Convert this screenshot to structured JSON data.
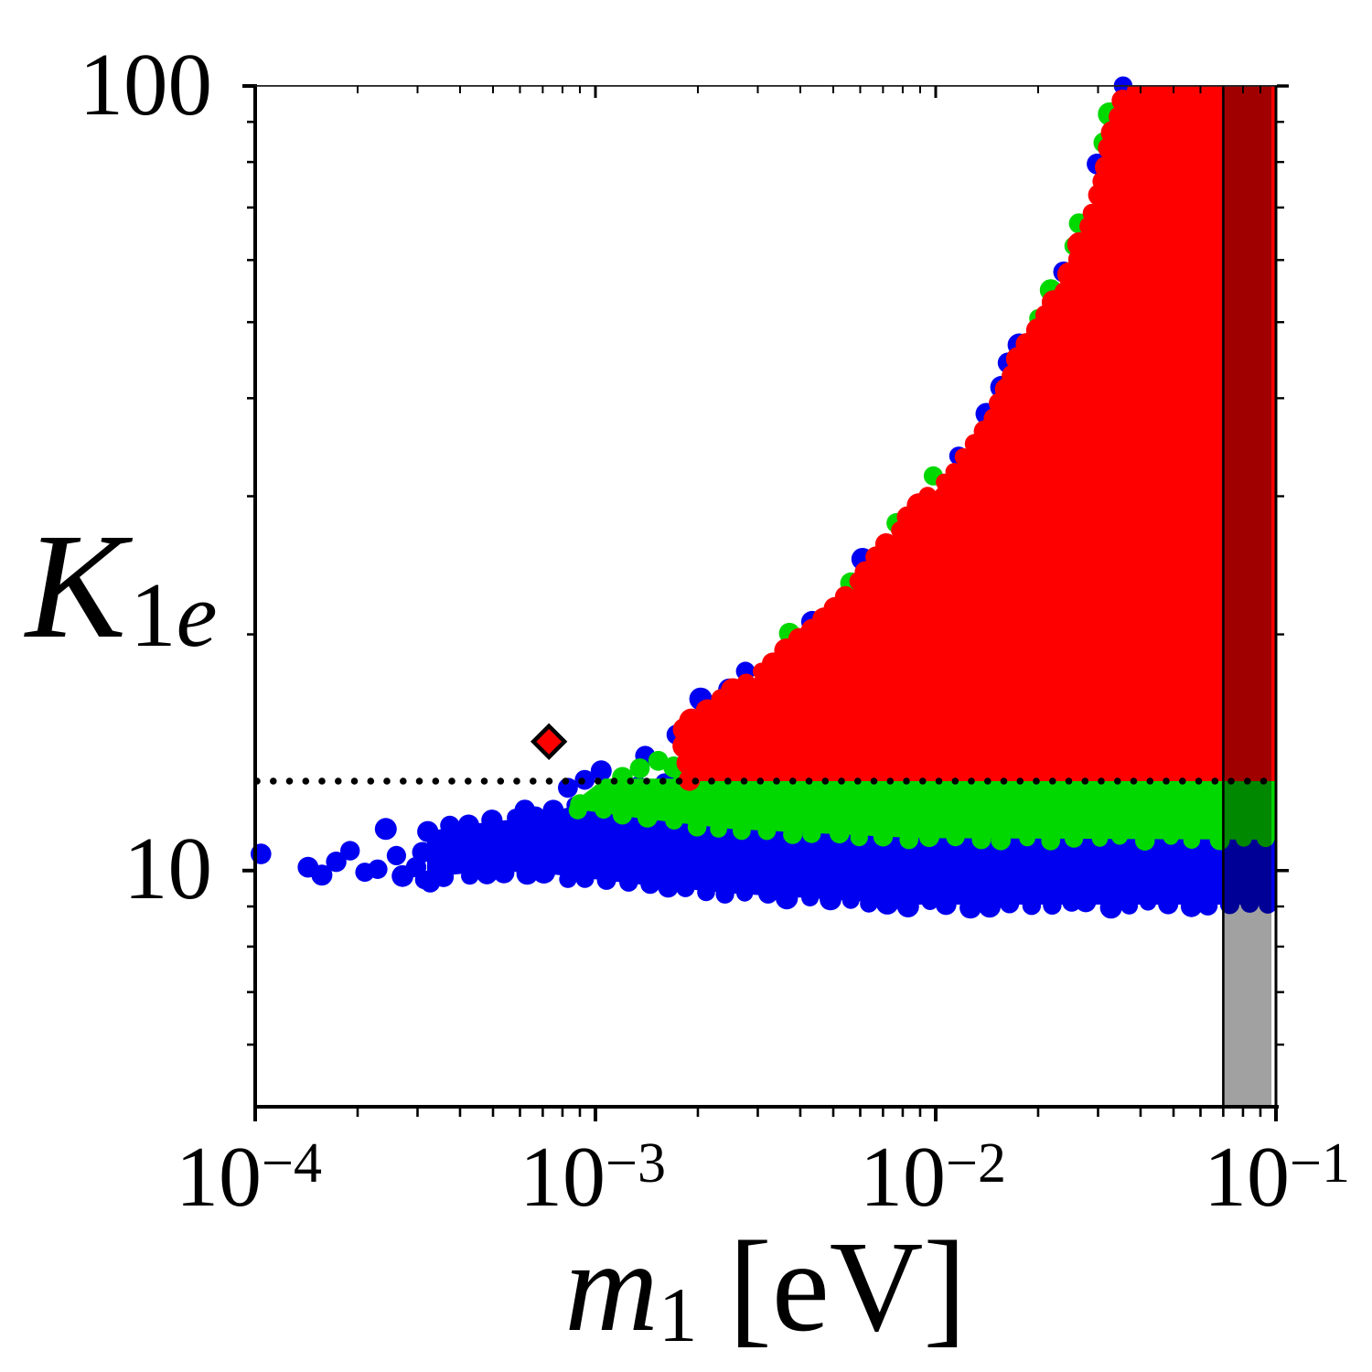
{
  "labels": {
    "y_major_100": "100",
    "y_major_10": "10",
    "ylabel": {
      "main": "K",
      "sub_num": "1",
      "sub_e": "e"
    },
    "xlabel": {
      "main": "m",
      "sub": "1",
      "unit": "[eV]"
    },
    "xticks": [
      {
        "base": "10",
        "exp": "−4"
      },
      {
        "base": "10",
        "exp": "−3"
      },
      {
        "base": "10",
        "exp": "−2"
      },
      {
        "base": "10",
        "exp": "−1"
      }
    ]
  },
  "chart_data": {
    "type": "scatter",
    "title": "",
    "xlabel": "m_1 [eV]",
    "ylabel": "K_1e",
    "xscale": "log",
    "yscale": "log",
    "xlim": [
      0.0001,
      0.1
    ],
    "ylim": [
      5,
      100
    ],
    "grid": false,
    "legend": "none",
    "x_major_ticks": [
      0.0001,
      0.001,
      0.01,
      0.1
    ],
    "x_minor_mantissas": [
      2,
      3,
      4,
      5,
      6,
      7,
      8,
      9
    ],
    "y_major_ticks": [
      10,
      100
    ],
    "y_minor_ticks": [
      6,
      7,
      8,
      9,
      20,
      30,
      40,
      50,
      60,
      70,
      80,
      90
    ],
    "dotted_line_y": 13.0,
    "benchmark_point": {
      "marker": "diamond",
      "x": 0.00073,
      "y": 14.6,
      "fill": "#ff0000",
      "edge": "#000000"
    },
    "excluded_band": {
      "x_min": 0.07,
      "x_max": 0.097,
      "overlay": "rgba(0,0,0,0.37)",
      "edge_color": "#000000"
    },
    "colors": {
      "blue": "#0000f0",
      "green": "#00d800",
      "red": "#ff0000",
      "axis": "#000000",
      "dotted": "#000000"
    },
    "series": [
      {
        "name": "blue-region",
        "color": "#0000f0",
        "upper": [
          [
            0.00032,
            11.2
          ],
          [
            0.00039,
            11.4
          ],
          [
            0.00055,
            11.6
          ],
          [
            0.00073,
            11.85
          ],
          [
            0.00099,
            12.3
          ],
          [
            0.00135,
            12.9
          ],
          [
            0.1,
            12.9
          ]
        ],
        "lower": [
          [
            0.00032,
            9.8
          ],
          [
            0.0005,
            10.0
          ],
          [
            0.00073,
            9.9
          ],
          [
            0.00135,
            9.6
          ],
          [
            0.0025,
            9.35
          ],
          [
            0.0087,
            9.05
          ],
          [
            0.1,
            9.05
          ]
        ],
        "sparse_points": [
          [
            0.000104,
            10.5
          ],
          [
            0.000143,
            10.1
          ],
          [
            0.000157,
            9.87
          ],
          [
            0.000173,
            10.26
          ],
          [
            0.00019,
            10.6
          ],
          [
            0.00021,
            9.95
          ],
          [
            0.000229,
            10.04
          ],
          [
            0.000242,
            11.3
          ],
          [
            0.00026,
            10.45
          ],
          [
            0.000271,
            9.84
          ],
          [
            0.000297,
            10.1
          ],
          [
            0.00031,
            10.55
          ],
          [
            0.000327,
            9.65
          ],
          [
            0.000345,
            10.0
          ],
          [
            0.000364,
            10.3
          ],
          [
            0.00038,
            10.9
          ],
          [
            0.00041,
            10.7
          ],
          [
            0.00045,
            10.2
          ],
          [
            0.00048,
            9.9
          ],
          [
            0.0005,
            11.0
          ],
          [
            0.00053,
            10.6
          ],
          [
            0.00058,
            10.3
          ],
          [
            0.0006,
            10.8
          ],
          [
            0.00063,
            9.9
          ],
          [
            0.00068,
            10.5
          ],
          [
            0.00073,
            10.15
          ]
        ],
        "outlier_points": [
          [
            0.00104,
            13.4
          ],
          [
            0.0014,
            14.0
          ],
          [
            0.00173,
            14.9
          ],
          [
            0.00093,
            13.05
          ],
          [
            0.00083,
            12.75
          ],
          [
            0.00062,
            11.95
          ]
        ]
      },
      {
        "name": "green-region",
        "color": "#00d800",
        "upper": [
          [
            0.00088,
            12.3
          ],
          [
            0.00106,
            13.1
          ],
          [
            0.1,
            13.1
          ]
        ],
        "lower": [
          [
            0.00088,
            11.97
          ],
          [
            0.00135,
            11.66
          ],
          [
            0.0025,
            11.3
          ],
          [
            0.0087,
            11.0
          ],
          [
            0.1,
            10.95
          ]
        ],
        "outlier_points": [
          [
            0.00135,
            13.5
          ],
          [
            0.00153,
            13.8
          ],
          [
            0.0017,
            13.55
          ],
          [
            0.0012,
            13.15
          ]
        ]
      },
      {
        "name": "red-region",
        "color": "#ff0000",
        "bottom_y": 13.0,
        "edge": [
          [
            0.0019,
            13.0
          ],
          [
            0.00185,
            15.4
          ],
          [
            0.0028,
            17.3
          ],
          [
            0.004,
            19.7
          ],
          [
            0.0052,
            21.7
          ],
          [
            0.0065,
            24.4
          ],
          [
            0.0087,
            28.8
          ],
          [
            0.0098,
            30.2
          ],
          [
            0.0123,
            33.7
          ],
          [
            0.0153,
            38.5
          ],
          [
            0.0173,
            44.1
          ],
          [
            0.0206,
            49.7
          ],
          [
            0.0248,
            56.1
          ],
          [
            0.0299,
            71.5
          ],
          [
            0.0367,
            100
          ]
        ]
      }
    ]
  }
}
